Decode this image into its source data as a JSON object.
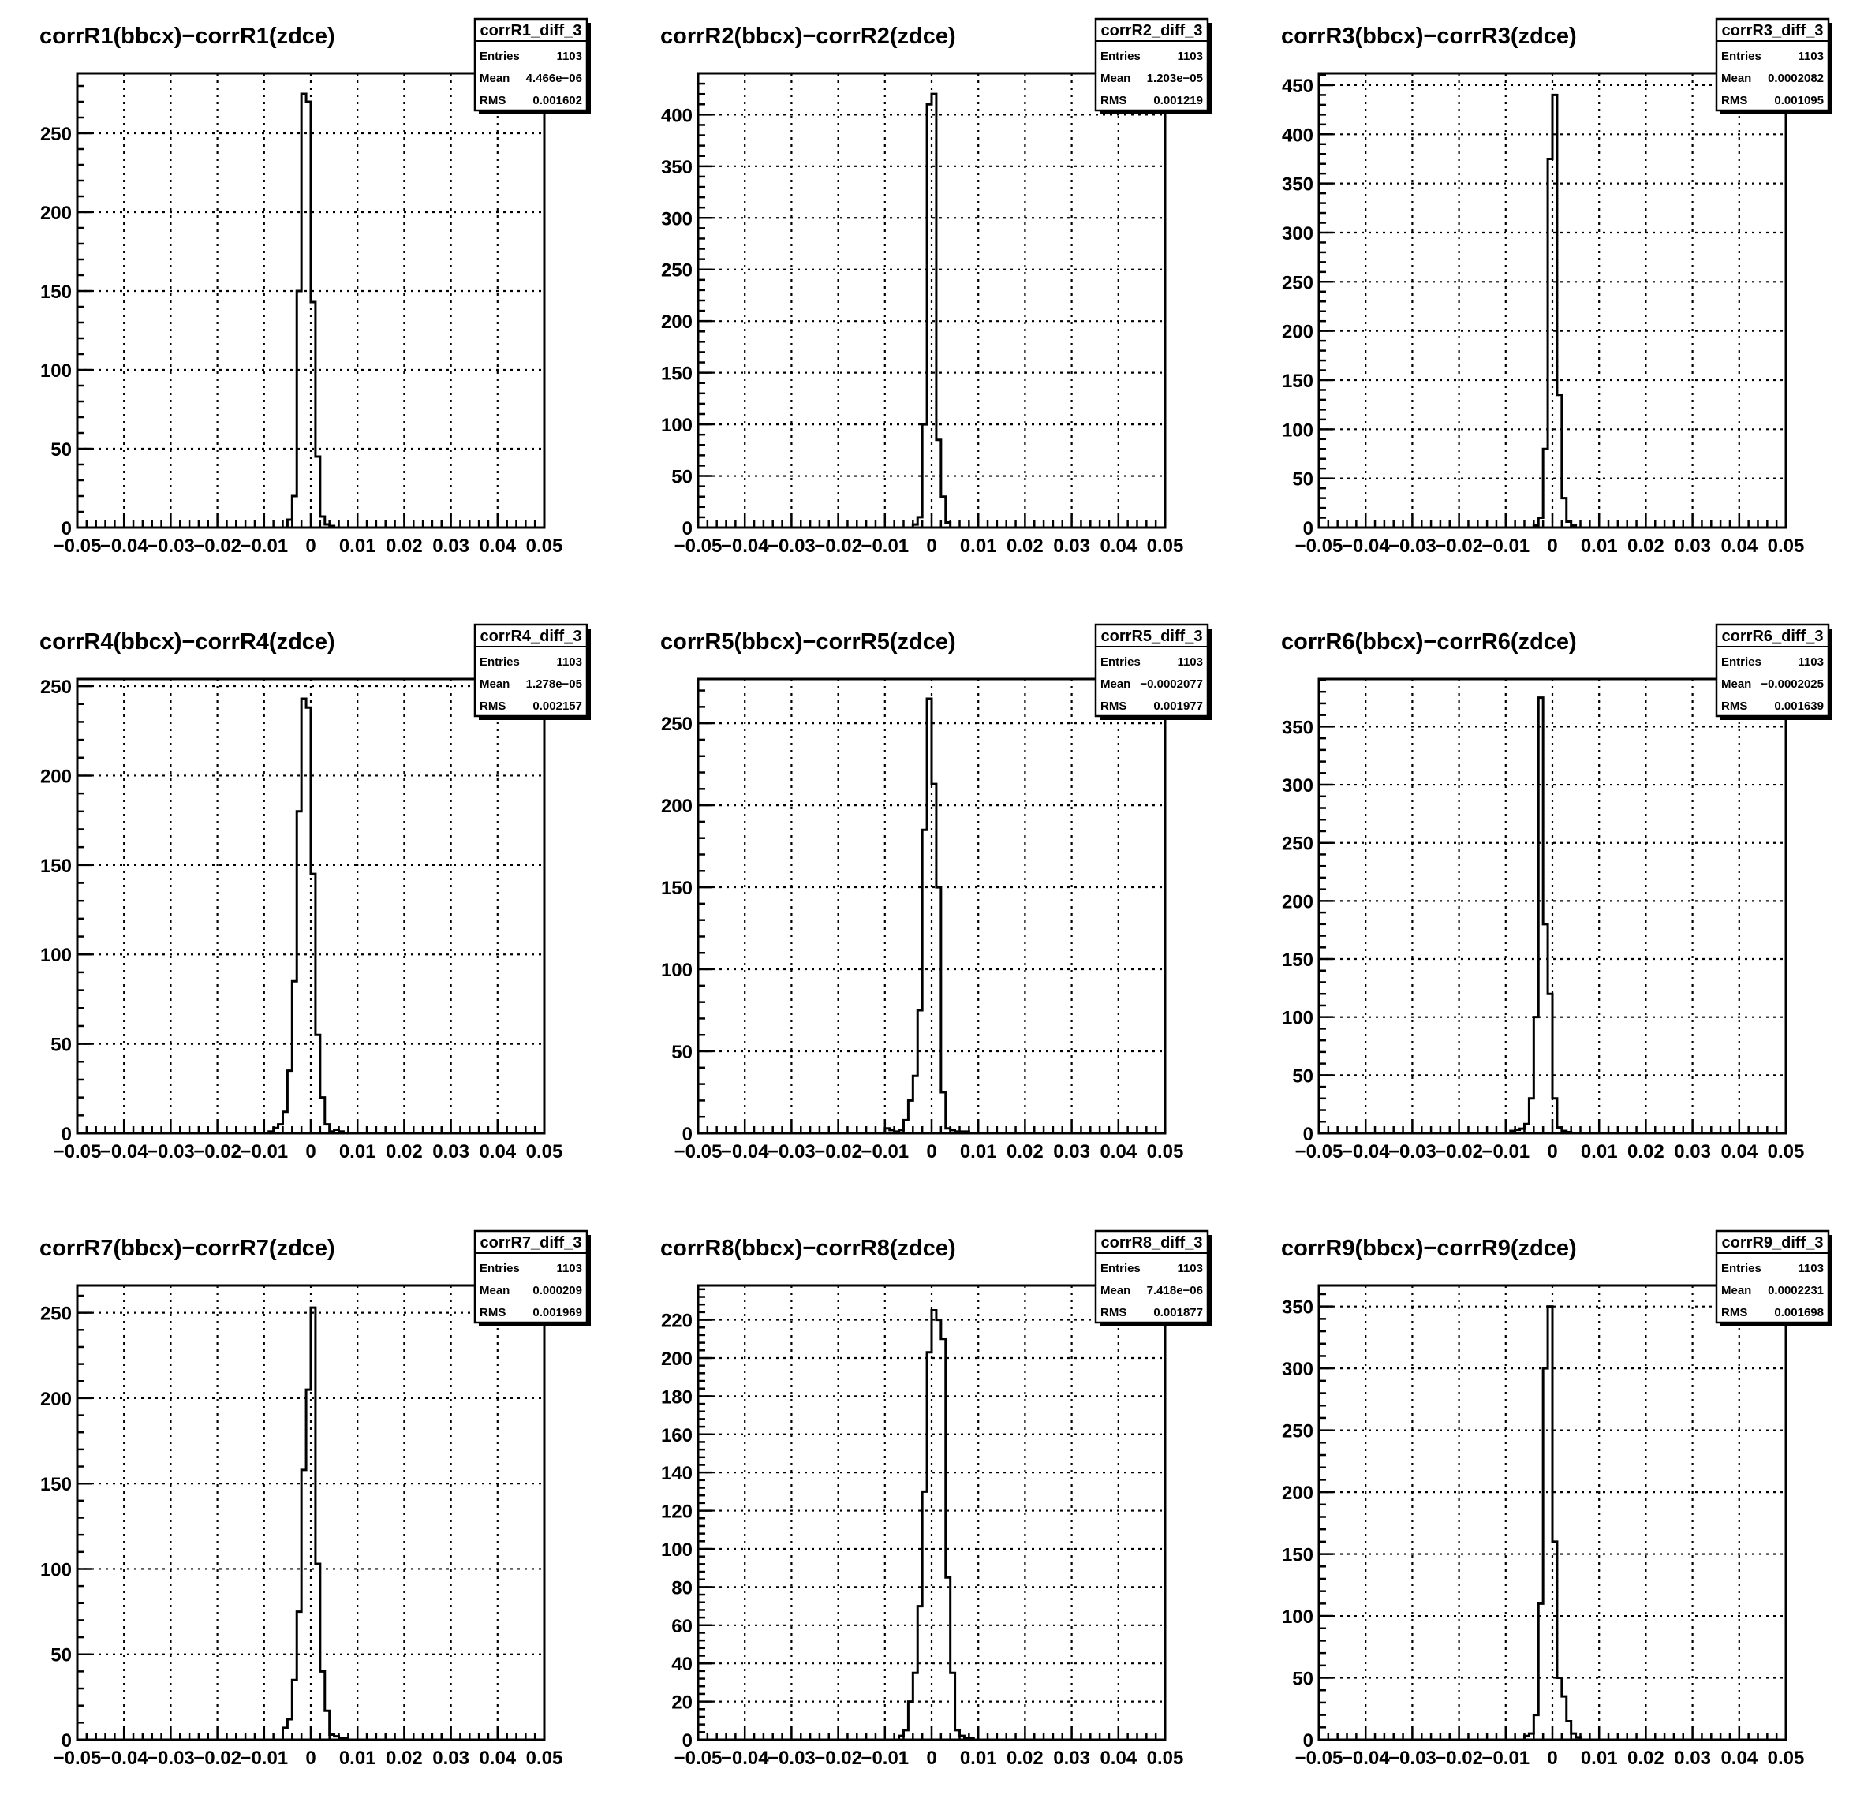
{
  "colors": {
    "frame": "#000000",
    "grid": "#000000",
    "histogram": "#000000",
    "background": "#ffffff"
  },
  "stat_labels": {
    "entries": "Entries",
    "mean": "Mean",
    "rms": "RMS"
  },
  "chart_data": [
    {
      "type": "histogram",
      "title": "corrR1(bbcx)−corrR1(zdce)",
      "xlabel": "",
      "ylabel": "",
      "grid": true,
      "legend_placement": "top-right",
      "stats": {
        "name": "corrR1_diff_3",
        "entries": "1103",
        "mean": "4.466e−06",
        "rms": "0.001602"
      },
      "xlim": [
        -0.05,
        0.05
      ],
      "ylim": [
        0,
        288
      ],
      "xticks": [
        -0.05,
        -0.04,
        -0.03,
        -0.02,
        -0.01,
        0,
        0.01,
        0.02,
        0.03,
        0.04,
        0.05
      ],
      "xtick_labels": [
        "−0.05",
        "−0.04",
        "−0.03",
        "−0.02",
        "−0.01",
        "0",
        "0.01",
        "0.02",
        "0.03",
        "0.04",
        "0.05"
      ],
      "yticks": [
        0,
        50,
        100,
        150,
        200,
        250
      ],
      "bins": {
        "start": -0.005,
        "width": 0.001,
        "counts": [
          5,
          20,
          150,
          275,
          270,
          143,
          45,
          7,
          2,
          1
        ]
      }
    },
    {
      "type": "histogram",
      "title": "corrR2(bbcx)−corrR2(zdce)",
      "xlabel": "",
      "ylabel": "",
      "grid": true,
      "legend_placement": "top-right",
      "stats": {
        "name": "corrR2_diff_3",
        "entries": "1103",
        "mean": "1.203e−05",
        "rms": "0.001219"
      },
      "xlim": [
        -0.05,
        0.05
      ],
      "ylim": [
        0,
        440
      ],
      "xticks": [
        -0.05,
        -0.04,
        -0.03,
        -0.02,
        -0.01,
        0,
        0.01,
        0.02,
        0.03,
        0.04,
        0.05
      ],
      "xtick_labels": [
        "−0.05",
        "−0.04",
        "−0.03",
        "−0.02",
        "−0.01",
        "0",
        "0.01",
        "0.02",
        "0.03",
        "0.04",
        "0.05"
      ],
      "yticks": [
        0,
        50,
        100,
        150,
        200,
        250,
        300,
        350,
        400
      ],
      "bins": {
        "start": -0.004,
        "width": 0.001,
        "counts": [
          3,
          10,
          100,
          410,
          420,
          85,
          30,
          5
        ]
      }
    },
    {
      "type": "histogram",
      "title": "corrR3(bbcx)−corrR3(zdce)",
      "xlabel": "",
      "ylabel": "",
      "grid": true,
      "legend_placement": "top-right",
      "stats": {
        "name": "corrR3_diff_3",
        "entries": "1103",
        "mean": "0.0002082",
        "rms": "0.001095"
      },
      "xlim": [
        -0.05,
        0.05
      ],
      "ylim": [
        0,
        462
      ],
      "xticks": [
        -0.05,
        -0.04,
        -0.03,
        -0.02,
        -0.01,
        0,
        0.01,
        0.02,
        0.03,
        0.04,
        0.05
      ],
      "xtick_labels": [
        "−0.05",
        "−0.04",
        "−0.03",
        "−0.02",
        "−0.01",
        "0",
        "0.01",
        "0.02",
        "0.03",
        "0.04",
        "0.05"
      ],
      "yticks": [
        0,
        50,
        100,
        150,
        200,
        250,
        300,
        350,
        400,
        450
      ],
      "bins": {
        "start": -0.004,
        "width": 0.001,
        "counts": [
          2,
          10,
          80,
          375,
          440,
          135,
          30,
          6,
          2
        ]
      }
    },
    {
      "type": "histogram",
      "title": "corrR4(bbcx)−corrR4(zdce)",
      "xlabel": "",
      "ylabel": "",
      "grid": true,
      "legend_placement": "top-right",
      "stats": {
        "name": "corrR4_diff_3",
        "entries": "1103",
        "mean": "1.278e−05",
        "rms": "0.002157"
      },
      "xlim": [
        -0.05,
        0.05
      ],
      "ylim": [
        0,
        254
      ],
      "xticks": [
        -0.05,
        -0.04,
        -0.03,
        -0.02,
        -0.01,
        0,
        0.01,
        0.02,
        0.03,
        0.04,
        0.05
      ],
      "xtick_labels": [
        "−0.05",
        "−0.04",
        "−0.03",
        "−0.02",
        "−0.01",
        "0",
        "0.01",
        "0.02",
        "0.03",
        "0.04",
        "0.05"
      ],
      "yticks": [
        0,
        50,
        100,
        150,
        200,
        250
      ],
      "bins": {
        "start": -0.009,
        "width": 0.001,
        "counts": [
          1,
          3,
          5,
          12,
          35,
          85,
          180,
          243,
          238,
          145,
          55,
          20,
          5,
          1,
          2,
          1
        ]
      }
    },
    {
      "type": "histogram",
      "title": "corrR5(bbcx)−corrR5(zdce)",
      "xlabel": "",
      "ylabel": "",
      "grid": true,
      "legend_placement": "top-right",
      "stats": {
        "name": "corrR5_diff_3",
        "entries": "1103",
        "mean": "−0.0002077",
        "rms": "0.001977"
      },
      "xlim": [
        -0.05,
        0.05
      ],
      "ylim": [
        0,
        277
      ],
      "xticks": [
        -0.05,
        -0.04,
        -0.03,
        -0.02,
        -0.01,
        0,
        0.01,
        0.02,
        0.03,
        0.04,
        0.05
      ],
      "xtick_labels": [
        "−0.05",
        "−0.04",
        "−0.03",
        "−0.02",
        "−0.01",
        "0",
        "0.01",
        "0.02",
        "0.03",
        "0.04",
        "0.05"
      ],
      "yticks": [
        0,
        50,
        100,
        150,
        200,
        250
      ],
      "bins": {
        "start": -0.01,
        "width": 0.001,
        "counts": [
          3,
          2,
          1,
          2,
          8,
          20,
          35,
          75,
          185,
          265,
          213,
          150,
          25,
          3,
          2,
          1,
          1,
          1
        ]
      }
    },
    {
      "type": "histogram",
      "title": "corrR6(bbcx)−corrR6(zdce)",
      "xlabel": "",
      "ylabel": "",
      "grid": true,
      "legend_placement": "top-right",
      "stats": {
        "name": "corrR6_diff_3",
        "entries": "1103",
        "mean": "−0.0002025",
        "rms": "0.001639"
      },
      "xlim": [
        -0.05,
        0.05
      ],
      "ylim": [
        0,
        391
      ],
      "xticks": [
        -0.05,
        -0.04,
        -0.03,
        -0.02,
        -0.01,
        0,
        0.01,
        0.02,
        0.03,
        0.04,
        0.05
      ],
      "xtick_labels": [
        "−0.05",
        "−0.04",
        "−0.03",
        "−0.02",
        "−0.01",
        "0",
        "0.01",
        "0.02",
        "0.03",
        "0.04",
        "0.05"
      ],
      "yticks": [
        0,
        50,
        100,
        150,
        200,
        250,
        300,
        350
      ],
      "bins": {
        "start": -0.009,
        "width": 0.001,
        "counts": [
          2,
          3,
          4,
          8,
          30,
          100,
          375,
          180,
          120,
          30,
          5,
          2,
          1
        ]
      }
    },
    {
      "type": "histogram",
      "title": "corrR7(bbcx)−corrR7(zdce)",
      "xlabel": "",
      "ylabel": "",
      "grid": true,
      "legend_placement": "top-right",
      "stats": {
        "name": "corrR7_diff_3",
        "entries": "1103",
        "mean": "0.000209",
        "rms": "0.001969"
      },
      "xlim": [
        -0.05,
        0.05
      ],
      "ylim": [
        0,
        266
      ],
      "xticks": [
        -0.05,
        -0.04,
        -0.03,
        -0.02,
        -0.01,
        0,
        0.01,
        0.02,
        0.03,
        0.04,
        0.05
      ],
      "xtick_labels": [
        "−0.05",
        "−0.04",
        "−0.03",
        "−0.02",
        "−0.01",
        "0",
        "0.01",
        "0.02",
        "0.03",
        "0.04",
        "0.05"
      ],
      "yticks": [
        0,
        50,
        100,
        150,
        200,
        250
      ],
      "bins": {
        "start": -0.006,
        "width": 0.001,
        "counts": [
          7,
          12,
          35,
          75,
          158,
          205,
          253,
          103,
          40,
          17,
          3,
          2,
          1,
          1
        ]
      }
    },
    {
      "type": "histogram",
      "title": "corrR8(bbcx)−corrR8(zdce)",
      "xlabel": "",
      "ylabel": "",
      "grid": true,
      "legend_placement": "top-right",
      "stats": {
        "name": "corrR8_diff_3",
        "entries": "1103",
        "mean": "7.418e−06",
        "rms": "0.001877"
      },
      "xlim": [
        -0.05,
        0.05
      ],
      "ylim": [
        0,
        238
      ],
      "xticks": [
        -0.05,
        -0.04,
        -0.03,
        -0.02,
        -0.01,
        0,
        0.01,
        0.02,
        0.03,
        0.04,
        0.05
      ],
      "xtick_labels": [
        "−0.05",
        "−0.04",
        "−0.03",
        "−0.02",
        "−0.01",
        "0",
        "0.01",
        "0.02",
        "0.03",
        "0.04",
        "0.05"
      ],
      "yticks": [
        0,
        20,
        40,
        60,
        80,
        100,
        120,
        140,
        160,
        180,
        200,
        220
      ],
      "bins": {
        "start": -0.007,
        "width": 0.001,
        "counts": [
          2,
          5,
          20,
          35,
          70,
          130,
          203,
          225,
          220,
          210,
          85,
          35,
          5,
          2,
          1,
          1
        ]
      }
    },
    {
      "type": "histogram",
      "title": "corrR9(bbcx)−corrR9(zdce)",
      "xlabel": "",
      "ylabel": "",
      "grid": true,
      "legend_placement": "top-right",
      "stats": {
        "name": "corrR9_diff_3",
        "entries": "1103",
        "mean": "0.0002231",
        "rms": "0.001698"
      },
      "xlim": [
        -0.05,
        0.05
      ],
      "ylim": [
        0,
        367
      ],
      "xticks": [
        -0.05,
        -0.04,
        -0.03,
        -0.02,
        -0.01,
        0,
        0.01,
        0.02,
        0.03,
        0.04,
        0.05
      ],
      "xtick_labels": [
        "−0.05",
        "−0.04",
        "−0.03",
        "−0.02",
        "−0.01",
        "0",
        "0.01",
        "0.02",
        "0.03",
        "0.04",
        "0.05"
      ],
      "yticks": [
        0,
        50,
        100,
        150,
        200,
        250,
        300,
        350
      ],
      "bins": {
        "start": -0.006,
        "width": 0.001,
        "counts": [
          3,
          5,
          20,
          110,
          300,
          350,
          160,
          50,
          35,
          15,
          5,
          2
        ]
      }
    }
  ]
}
